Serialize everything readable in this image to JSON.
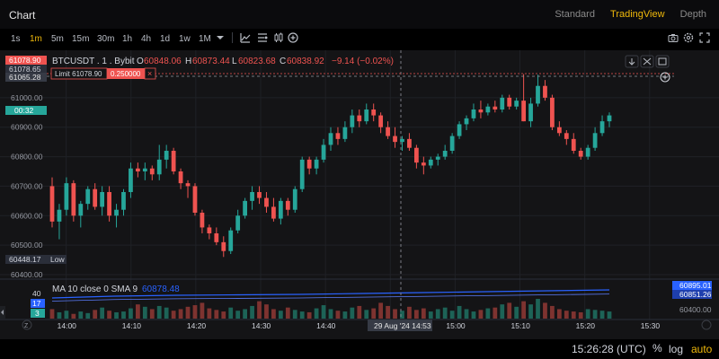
{
  "header": {
    "title": "Chart",
    "views": [
      "Standard",
      "TradingView",
      "Depth"
    ],
    "active_view": "TradingView"
  },
  "timeframes": [
    "1s",
    "1m",
    "5m",
    "15m",
    "30m",
    "1h",
    "4h",
    "1d",
    "1w",
    "1M"
  ],
  "active_timeframe": "1m",
  "toolbar_icons": [
    "indicators-icon",
    "template-icon",
    "chart-type-icon",
    "add-icon"
  ],
  "right_icons": [
    "camera-icon",
    "settings-icon",
    "fullscreen-icon"
  ],
  "legend": {
    "symbol": "BTCUSDT . 1 . Bybit",
    "o_label": "O",
    "o": "60848.06",
    "h_label": "H",
    "h": "60873.44",
    "l_label": "L",
    "l": "60823.68",
    "c_label": "C",
    "c": "60838.92",
    "change": "−9.14 (−0.02%)"
  },
  "order": {
    "label": "Limit 61078.90",
    "qty": "0.250000",
    "close_glyph": "×"
  },
  "price_axis": {
    "ticks": [
      "61000.00",
      "60900.00",
      "60800.00",
      "60700.00",
      "60600.00",
      "60500.00",
      "60400.00"
    ],
    "tags": {
      "order_price": "61078.90",
      "high": "61078.65",
      "crosshair": "61065.28",
      "countdown": "00:32",
      "low_price": "60448.17",
      "low_label": "Low"
    }
  },
  "indicator": {
    "label": "MA 10 close 0 SMA 9",
    "value": "60878.48",
    "axis_ticks": [
      "40",
      "17",
      "3"
    ],
    "right_tags": [
      "60895.01",
      "60851.26"
    ],
    "right_axis_label": "60400.00"
  },
  "time_axis": {
    "ticks": [
      "14:00",
      "14:10",
      "14:20",
      "14:30",
      "14:40",
      "14:50",
      "15:00",
      "15:10",
      "15:20",
      "15:30"
    ],
    "crosshair_label": "29 Aug '24   14:53"
  },
  "status_bar": {
    "clock": "15:26:28 (UTC)",
    "percent": "%",
    "log": "log",
    "auto": "auto"
  },
  "colors": {
    "up": "#26a69a",
    "down": "#ef5350",
    "accent": "#f0b90b",
    "background": "#141416",
    "ma_line": "#2962ff"
  },
  "chart_data": {
    "type": "candlestick",
    "symbol": "BTCUSDT",
    "interval": "1m",
    "ylim": [
      60400,
      61100
    ],
    "x_range": [
      "13:57",
      "15:31"
    ],
    "candles": [
      {
        "o": 60700,
        "h": 60730,
        "l": 60560,
        "c": 60580
      },
      {
        "o": 60580,
        "h": 60640,
        "l": 60520,
        "c": 60620
      },
      {
        "o": 60620,
        "h": 60730,
        "l": 60600,
        "c": 60710
      },
      {
        "o": 60710,
        "h": 60720,
        "l": 60580,
        "c": 60600
      },
      {
        "o": 60600,
        "h": 60650,
        "l": 60560,
        "c": 60640
      },
      {
        "o": 60640,
        "h": 60700,
        "l": 60620,
        "c": 60690
      },
      {
        "o": 60690,
        "h": 60710,
        "l": 60620,
        "c": 60630
      },
      {
        "o": 60630,
        "h": 60700,
        "l": 60600,
        "c": 60680
      },
      {
        "o": 60680,
        "h": 60700,
        "l": 60580,
        "c": 60600
      },
      {
        "o": 60600,
        "h": 60640,
        "l": 60560,
        "c": 60620
      },
      {
        "o": 60620,
        "h": 60690,
        "l": 60600,
        "c": 60680
      },
      {
        "o": 60680,
        "h": 60780,
        "l": 60660,
        "c": 60760
      },
      {
        "o": 60760,
        "h": 60780,
        "l": 60730,
        "c": 60750
      },
      {
        "o": 60750,
        "h": 60780,
        "l": 60720,
        "c": 60760
      },
      {
        "o": 60760,
        "h": 60770,
        "l": 60720,
        "c": 60740
      },
      {
        "o": 60740,
        "h": 60840,
        "l": 60720,
        "c": 60790
      },
      {
        "o": 60790,
        "h": 60840,
        "l": 60760,
        "c": 60820
      },
      {
        "o": 60820,
        "h": 60830,
        "l": 60740,
        "c": 60750
      },
      {
        "o": 60750,
        "h": 60760,
        "l": 60690,
        "c": 60710
      },
      {
        "o": 60710,
        "h": 60720,
        "l": 60660,
        "c": 60700
      },
      {
        "o": 60700,
        "h": 60710,
        "l": 60600,
        "c": 60610
      },
      {
        "o": 60610,
        "h": 60620,
        "l": 60540,
        "c": 60560
      },
      {
        "o": 60560,
        "h": 60570,
        "l": 60520,
        "c": 60540
      },
      {
        "o": 60540,
        "h": 60560,
        "l": 60500,
        "c": 60510
      },
      {
        "o": 60510,
        "h": 60530,
        "l": 60460,
        "c": 60480
      },
      {
        "o": 60480,
        "h": 60560,
        "l": 60470,
        "c": 60550
      },
      {
        "o": 60550,
        "h": 60620,
        "l": 60540,
        "c": 60600
      },
      {
        "o": 60600,
        "h": 60660,
        "l": 60590,
        "c": 60650
      },
      {
        "o": 60650,
        "h": 60700,
        "l": 60620,
        "c": 60680
      },
      {
        "o": 60680,
        "h": 60700,
        "l": 60640,
        "c": 60660
      },
      {
        "o": 60660,
        "h": 60680,
        "l": 60610,
        "c": 60630
      },
      {
        "o": 60630,
        "h": 60660,
        "l": 60580,
        "c": 60590
      },
      {
        "o": 60590,
        "h": 60660,
        "l": 60570,
        "c": 60650
      },
      {
        "o": 60650,
        "h": 60660,
        "l": 60600,
        "c": 60620
      },
      {
        "o": 60620,
        "h": 60700,
        "l": 60610,
        "c": 60690
      },
      {
        "o": 60690,
        "h": 60800,
        "l": 60680,
        "c": 60790
      },
      {
        "o": 60790,
        "h": 60800,
        "l": 60740,
        "c": 60760
      },
      {
        "o": 60760,
        "h": 60800,
        "l": 60740,
        "c": 60790
      },
      {
        "o": 60790,
        "h": 60860,
        "l": 60780,
        "c": 60840
      },
      {
        "o": 60840,
        "h": 60900,
        "l": 60820,
        "c": 60880
      },
      {
        "o": 60880,
        "h": 60900,
        "l": 60840,
        "c": 60860
      },
      {
        "o": 60860,
        "h": 60920,
        "l": 60850,
        "c": 60900
      },
      {
        "o": 60900,
        "h": 60960,
        "l": 60880,
        "c": 60940
      },
      {
        "o": 60940,
        "h": 60960,
        "l": 60900,
        "c": 60920
      },
      {
        "o": 60920,
        "h": 60980,
        "l": 60910,
        "c": 60960
      },
      {
        "o": 60960,
        "h": 60980,
        "l": 60920,
        "c": 60940
      },
      {
        "o": 60940,
        "h": 60950,
        "l": 60880,
        "c": 60900
      },
      {
        "o": 60900,
        "h": 60920,
        "l": 60860,
        "c": 60870
      },
      {
        "o": 60870,
        "h": 60900,
        "l": 60830,
        "c": 60850
      },
      {
        "o": 60850,
        "h": 60870,
        "l": 60820,
        "c": 60860
      },
      {
        "o": 60860,
        "h": 60880,
        "l": 60820,
        "c": 60830
      },
      {
        "o": 60830,
        "h": 60840,
        "l": 60760,
        "c": 60780
      },
      {
        "o": 60780,
        "h": 60800,
        "l": 60740,
        "c": 60770
      },
      {
        "o": 60770,
        "h": 60800,
        "l": 60760,
        "c": 60790
      },
      {
        "o": 60790,
        "h": 60810,
        "l": 60770,
        "c": 60800
      },
      {
        "o": 60800,
        "h": 60840,
        "l": 60790,
        "c": 60820
      },
      {
        "o": 60820,
        "h": 60880,
        "l": 60810,
        "c": 60870
      },
      {
        "o": 60870,
        "h": 60920,
        "l": 60860,
        "c": 60910
      },
      {
        "o": 60910,
        "h": 60940,
        "l": 60890,
        "c": 60930
      },
      {
        "o": 60930,
        "h": 60980,
        "l": 60920,
        "c": 60960
      },
      {
        "o": 60960,
        "h": 60990,
        "l": 60930,
        "c": 60950
      },
      {
        "o": 60950,
        "h": 60980,
        "l": 60940,
        "c": 60970
      },
      {
        "o": 60970,
        "h": 60990,
        "l": 60950,
        "c": 60960
      },
      {
        "o": 60960,
        "h": 61010,
        "l": 60950,
        "c": 61000
      },
      {
        "o": 61000,
        "h": 61010,
        "l": 60960,
        "c": 60970
      },
      {
        "o": 60970,
        "h": 61000,
        "l": 60960,
        "c": 60990
      },
      {
        "o": 60990,
        "h": 61080,
        "l": 60920,
        "c": 60920
      },
      {
        "o": 60920,
        "h": 61000,
        "l": 60900,
        "c": 60980
      },
      {
        "o": 60980,
        "h": 61078,
        "l": 60970,
        "c": 61040
      },
      {
        "o": 61040,
        "h": 61060,
        "l": 60990,
        "c": 61000
      },
      {
        "o": 61000,
        "h": 61010,
        "l": 60890,
        "c": 60900
      },
      {
        "o": 60900,
        "h": 60920,
        "l": 60870,
        "c": 60880
      },
      {
        "o": 60880,
        "h": 60890,
        "l": 60840,
        "c": 60860
      },
      {
        "o": 60860,
        "h": 60880,
        "l": 60810,
        "c": 60820
      },
      {
        "o": 60820,
        "h": 60830,
        "l": 60790,
        "c": 60800
      },
      {
        "o": 60800,
        "h": 60840,
        "l": 60790,
        "c": 60830
      },
      {
        "o": 60830,
        "h": 60900,
        "l": 60820,
        "c": 60880
      },
      {
        "o": 60880,
        "h": 60940,
        "l": 60870,
        "c": 60920
      },
      {
        "o": 60920,
        "h": 60950,
        "l": 60900,
        "c": 60940
      }
    ],
    "volumes": [
      12,
      8,
      10,
      6,
      9,
      7,
      11,
      14,
      10,
      8,
      9,
      13,
      18,
      15,
      12,
      16,
      14,
      10,
      12,
      15,
      17,
      20,
      13,
      11,
      9,
      14,
      10,
      12,
      16,
      22,
      18,
      12,
      10,
      14,
      11,
      9,
      8,
      13,
      17,
      12,
      10,
      9,
      14,
      16,
      11,
      13,
      20,
      16,
      12,
      10,
      15,
      11,
      13,
      9,
      12,
      14,
      10,
      16,
      12,
      9,
      11,
      13,
      14,
      18,
      20,
      15,
      22,
      18,
      25,
      20,
      16,
      12,
      10,
      9,
      8,
      12,
      11,
      10,
      9
    ],
    "ma_series": [
      {
        "name": "MA 10",
        "values": [
          60640,
          60660,
          60670,
          60675,
          60680,
          60690,
          60700,
          60710,
          60720,
          60730
        ]
      }
    ]
  }
}
